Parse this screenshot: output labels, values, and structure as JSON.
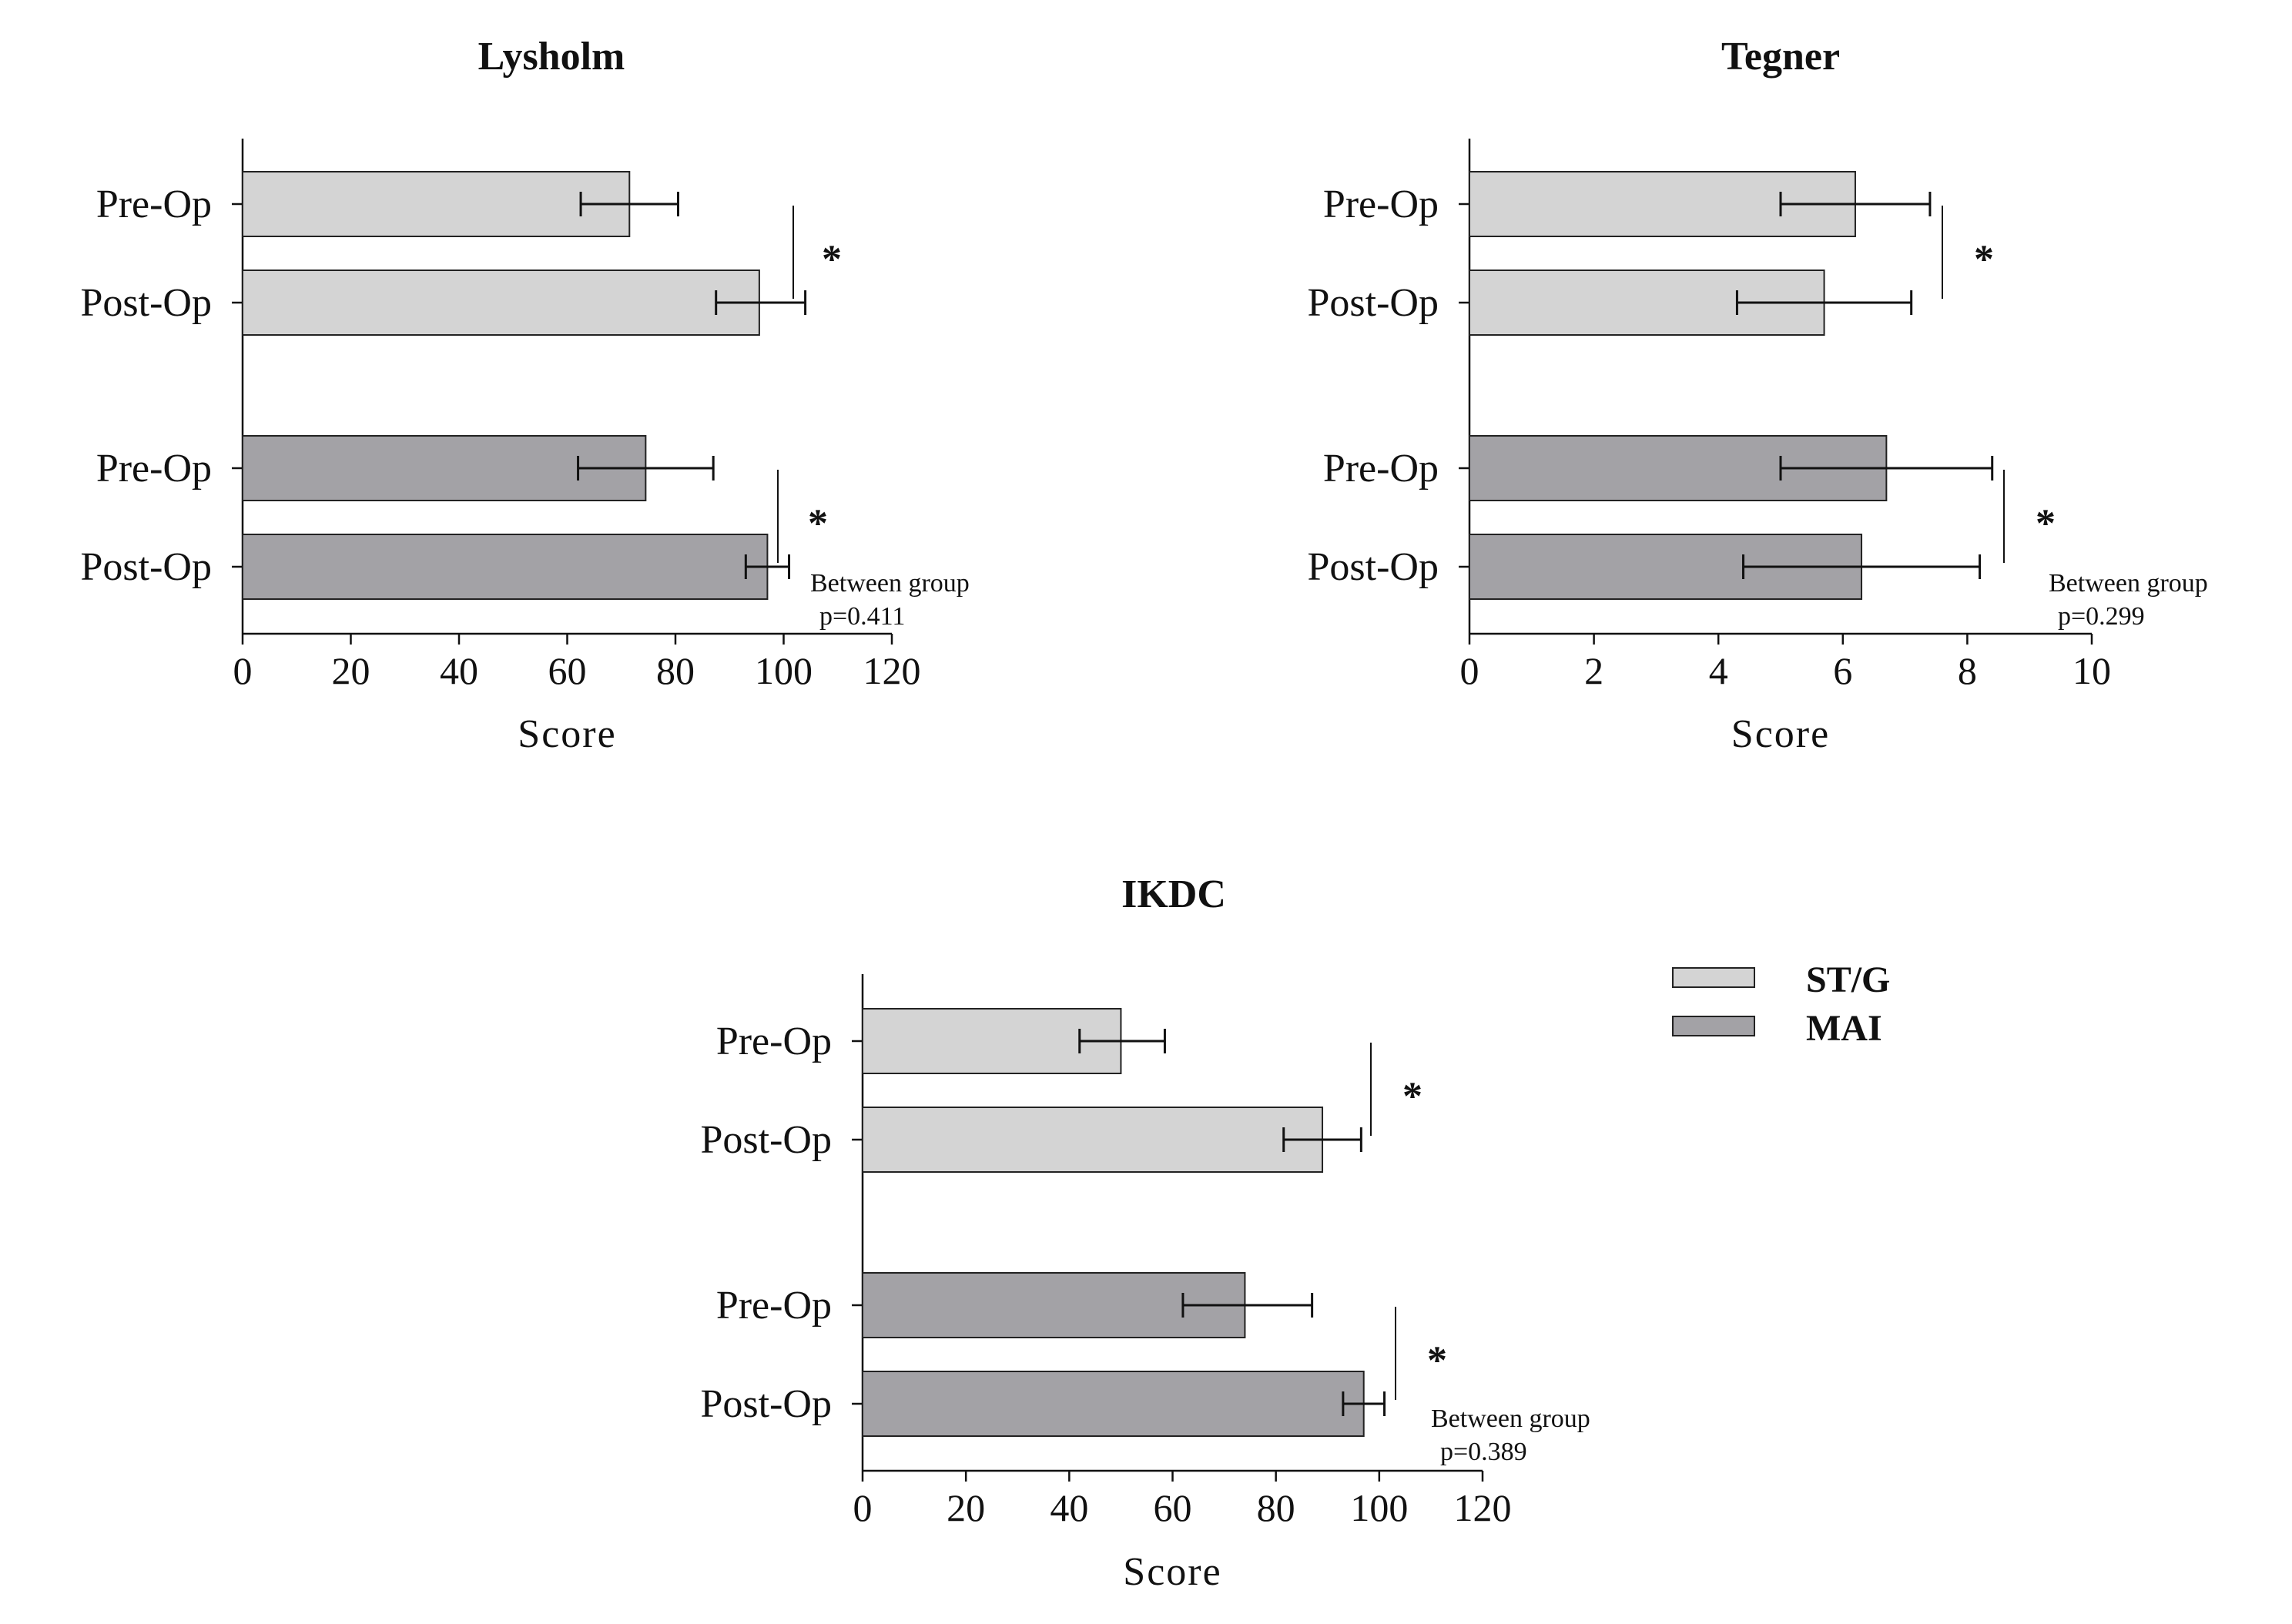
{
  "legend": [
    {
      "label": "ST/G",
      "color": "#d4d4d4"
    },
    {
      "label": "MAI",
      "color": "#a3a2a6"
    }
  ],
  "chart_data": [
    {
      "type": "bar",
      "orientation": "horizontal",
      "title": "Lysholm",
      "xlabel": "Score",
      "xlim": [
        0,
        120
      ],
      "xticks": [
        "0",
        "20",
        "40",
        "60",
        "80",
        "100",
        "120"
      ],
      "series": [
        {
          "name": "ST/G",
          "categories": [
            "Pre-Op",
            "Post-Op"
          ],
          "values": [
            71.5,
            95.5
          ],
          "err_low": [
            62.5,
            87.5
          ],
          "err_high": [
            80.5,
            104
          ]
        },
        {
          "name": "MAI",
          "categories": [
            "Pre-Op",
            "Post-Op"
          ],
          "values": [
            74.5,
            97
          ],
          "err_low": [
            62,
            93
          ],
          "err_high": [
            87,
            101
          ]
        }
      ],
      "significance": [
        "*",
        "*"
      ],
      "note_line1": "Between group",
      "note_line2": "p=0.411"
    },
    {
      "type": "bar",
      "orientation": "horizontal",
      "title": "Tegner",
      "xlabel": "Score",
      "xlim": [
        0,
        10
      ],
      "xticks": [
        "0",
        "2",
        "4",
        "6",
        "8",
        "10"
      ],
      "series": [
        {
          "name": "ST/G",
          "categories": [
            "Pre-Op",
            "Post-Op"
          ],
          "values": [
            6.2,
            5.7
          ],
          "err_low": [
            5.0,
            4.3
          ],
          "err_high": [
            7.4,
            7.1
          ]
        },
        {
          "name": "MAI",
          "categories": [
            "Pre-Op",
            "Post-Op"
          ],
          "values": [
            6.7,
            6.3
          ],
          "err_low": [
            5.0,
            4.4
          ],
          "err_high": [
            8.4,
            8.2
          ]
        }
      ],
      "significance": [
        "*",
        "*"
      ],
      "note_line1": "Between group",
      "note_line2": "p=0.299"
    },
    {
      "type": "bar",
      "orientation": "horizontal",
      "title": "IKDC",
      "xlabel": "Score",
      "xlim": [
        0,
        120
      ],
      "xticks": [
        "0",
        "20",
        "40",
        "60",
        "80",
        "100",
        "120"
      ],
      "series": [
        {
          "name": "ST/G",
          "categories": [
            "Pre-Op",
            "Post-Op"
          ],
          "values": [
            50,
            89
          ],
          "err_low": [
            42,
            81.5
          ],
          "err_high": [
            58.5,
            96.5
          ]
        },
        {
          "name": "MAI",
          "categories": [
            "Pre-Op",
            "Post-Op"
          ],
          "values": [
            74,
            97
          ],
          "err_low": [
            62,
            93
          ],
          "err_high": [
            87,
            101
          ]
        }
      ],
      "significance": [
        "*",
        "*"
      ],
      "note_line1": "Between group",
      "note_line2": "p=0.389"
    }
  ]
}
